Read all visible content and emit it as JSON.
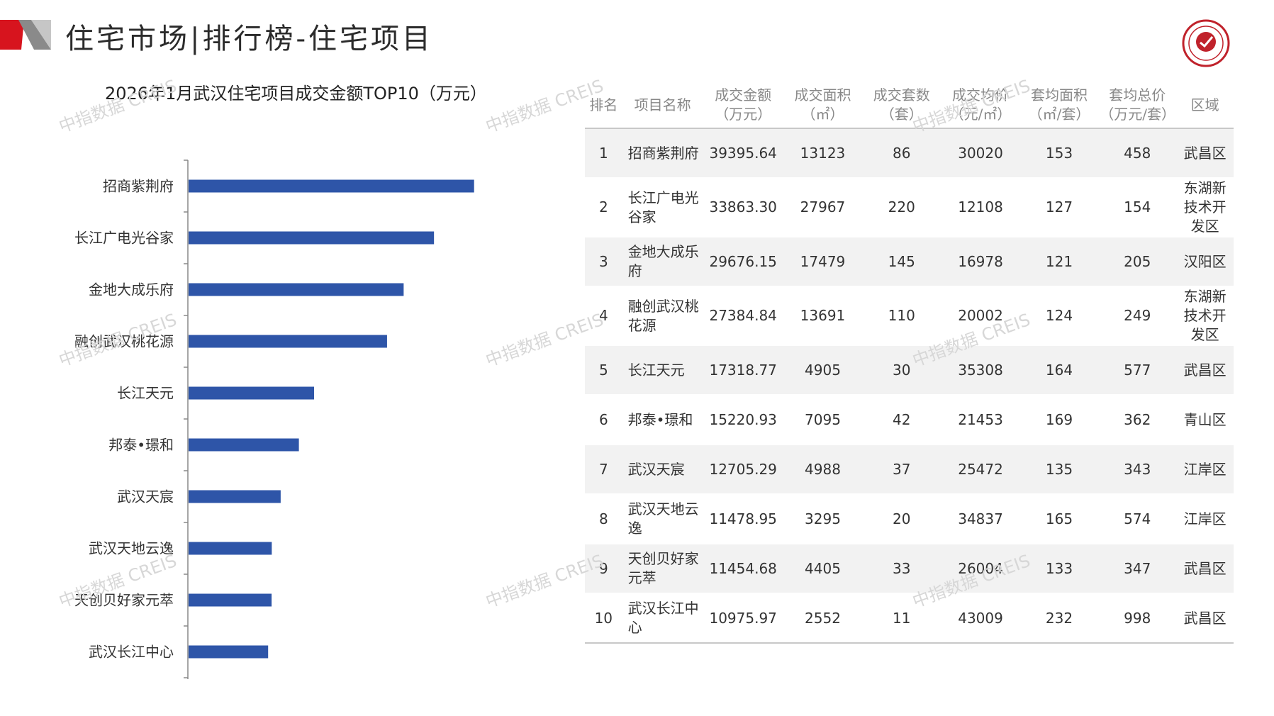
{
  "header": {
    "title": "住宅市场|排行榜-住宅项目"
  },
  "logo": {
    "icon": "index-academy-seal-icon",
    "color": "#c0222b"
  },
  "colors": {
    "accent_red": "#d7141e",
    "bar_blue": "#2e55a8",
    "header_gray": "#888888"
  },
  "watermark": {
    "text": "中指数据 CREIS"
  },
  "chart_data": {
    "type": "bar",
    "orientation": "horizontal",
    "title": "2026年1月武汉住宅项目成交金额TOP10（万元）",
    "categories": [
      "招商紫荆府",
      "长江广电光谷家",
      "金地大成乐府",
      "融创武汉桃花源",
      "长江天元",
      "邦泰•璟和",
      "武汉天宸",
      "武汉天地云逸",
      "天创贝好家元萃",
      "武汉长江中心"
    ],
    "values": [
      39395.64,
      33863.3,
      29676.15,
      27384.84,
      17318.77,
      15220.93,
      12705.29,
      11478.95,
      11454.68,
      10975.97
    ],
    "xlim": [
      0,
      45000
    ],
    "grid": false,
    "legend": "none"
  },
  "table": {
    "headers": [
      "排名",
      "项目名称",
      "成交金额\n（万元）",
      "成交面积\n（㎡）",
      "成交套数\n（套）",
      "成交均价\n（元/㎡）",
      "套均面积\n（㎡/套）",
      "套均总价\n（万元/套）",
      "区域"
    ],
    "rows": [
      [
        "1",
        "招商紫荆府",
        "39395.64",
        "13123",
        "86",
        "30020",
        "153",
        "458",
        "武昌区"
      ],
      [
        "2",
        "长江广电光谷家",
        "33863.30",
        "27967",
        "220",
        "12108",
        "127",
        "154",
        "东湖新技术开发区"
      ],
      [
        "3",
        "金地大成乐府",
        "29676.15",
        "17479",
        "145",
        "16978",
        "121",
        "205",
        "汉阳区"
      ],
      [
        "4",
        "融创武汉桃花源",
        "27384.84",
        "13691",
        "110",
        "20002",
        "124",
        "249",
        "东湖新技术开发区"
      ],
      [
        "5",
        "长江天元",
        "17318.77",
        "4905",
        "30",
        "35308",
        "164",
        "577",
        "武昌区"
      ],
      [
        "6",
        "邦泰•璟和",
        "15220.93",
        "7095",
        "42",
        "21453",
        "169",
        "362",
        "青山区"
      ],
      [
        "7",
        "武汉天宸",
        "12705.29",
        "4988",
        "37",
        "25472",
        "135",
        "343",
        "江岸区"
      ],
      [
        "8",
        "武汉天地云逸",
        "11478.95",
        "3295",
        "20",
        "34837",
        "165",
        "574",
        "江岸区"
      ],
      [
        "9",
        "天创贝好家元萃",
        "11454.68",
        "4405",
        "33",
        "26004",
        "133",
        "347",
        "武昌区"
      ],
      [
        "10",
        "武汉长江中心",
        "10975.97",
        "2552",
        "11",
        "43009",
        "232",
        "998",
        "武昌区"
      ]
    ]
  }
}
